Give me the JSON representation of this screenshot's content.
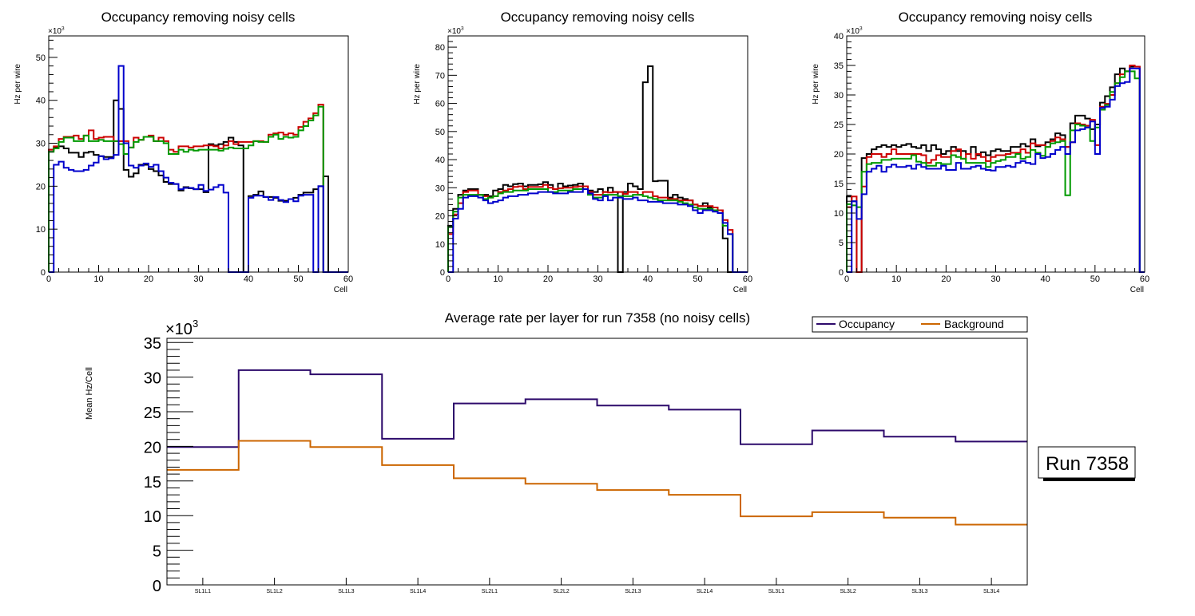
{
  "chart_data": [
    {
      "type": "histogram-step",
      "title": "Occupancy removing noisy cells",
      "xlabel": "Cell",
      "ylabel": "Hz per wire",
      "y_multiplier_label": "×10³",
      "xlim": [
        0,
        60
      ],
      "ylim": [
        0,
        55
      ],
      "x_ticks": [
        0,
        10,
        20,
        30,
        40,
        50,
        60
      ],
      "y_ticks": [
        0,
        10,
        20,
        30,
        40,
        50
      ],
      "bin_width": 1,
      "series": [
        {
          "name": "layer-black",
          "color": "#000000",
          "values": [
            28.5,
            29,
            29.3,
            28.8,
            27.8,
            27.8,
            26.8,
            27.8,
            28,
            27.3,
            27,
            26.8,
            26.8,
            40,
            38,
            23.8,
            22.2,
            23,
            25,
            25,
            24,
            23.5,
            22.5,
            21,
            20.5,
            20.5,
            19,
            19.8,
            19.5,
            19.3,
            19.3,
            18.6,
            29.8,
            29.5,
            29.8,
            30.3,
            31.3,
            30.3,
            29.5,
            0,
            17.7,
            18,
            18.8,
            17.5,
            17.5,
            17.3,
            16.6,
            16.6,
            17,
            17.3,
            18,
            18.5,
            18.5,
            19.3,
            20,
            22.3,
            0,
            0,
            0,
            0
          ]
        },
        {
          "name": "layer-red",
          "color": "#cc0000",
          "values": [
            28.5,
            29.3,
            31,
            31.5,
            31.5,
            31.8,
            31,
            31.8,
            33,
            31,
            31.3,
            31.5,
            31.5,
            30.5,
            30.5,
            30.5,
            29,
            31.3,
            30.8,
            31.5,
            31.8,
            30.5,
            31.3,
            30.5,
            28.5,
            28,
            29.3,
            29.3,
            29,
            29.3,
            29.3,
            29.5,
            29.5,
            29.3,
            28.8,
            29.5,
            30.5,
            29.8,
            30.3,
            30.3,
            30.3,
            30.5,
            30.5,
            30.3,
            32,
            32.3,
            32.5,
            32,
            32.3,
            32,
            33.8,
            35,
            35.8,
            37,
            39,
            0,
            0,
            0,
            0,
            0
          ]
        },
        {
          "name": "layer-green",
          "color": "#009900",
          "values": [
            28,
            28.8,
            30.3,
            31.3,
            31.3,
            30.5,
            30.5,
            31.8,
            30.5,
            30.5,
            30.8,
            30.5,
            30.5,
            30.5,
            29.8,
            27.5,
            29,
            30.3,
            30.8,
            31.5,
            31.5,
            30.5,
            30.5,
            30,
            27.5,
            27.5,
            28.5,
            28,
            28.5,
            28.3,
            28.5,
            28.5,
            28.5,
            28.5,
            28.3,
            28.7,
            29,
            28.8,
            28.8,
            28.8,
            29.5,
            30.5,
            30.3,
            30.3,
            31.5,
            32,
            31,
            31.5,
            31.3,
            31.5,
            33,
            34,
            35.3,
            36.5,
            38.5,
            0,
            0,
            0,
            0,
            0
          ]
        },
        {
          "name": "layer-blue",
          "color": "#0000cc",
          "values": [
            0,
            25,
            25.7,
            24.3,
            23.8,
            23.5,
            23.5,
            23.8,
            24.8,
            25.5,
            27,
            26.3,
            26.5,
            27.3,
            48,
            30,
            24.8,
            24.3,
            24.8,
            25.3,
            24.5,
            25,
            23.5,
            22,
            20.8,
            20.5,
            19.3,
            19.6,
            19.6,
            19.3,
            20.3,
            18.9,
            19.2,
            19.8,
            20.3,
            18.5,
            0,
            0,
            0,
            0,
            17.3,
            17.8,
            17.8,
            17.5,
            16.8,
            17.5,
            16.8,
            16.3,
            17,
            16.5,
            17.8,
            18,
            18,
            0,
            20,
            0,
            0,
            0,
            0,
            0
          ]
        }
      ]
    },
    {
      "type": "histogram-step",
      "title": "Occupancy removing noisy cells",
      "xlabel": "Cell",
      "ylabel": "Hz per wire",
      "y_multiplier_label": "×10³",
      "xlim": [
        0,
        60
      ],
      "ylim": [
        0,
        84
      ],
      "x_ticks": [
        0,
        10,
        20,
        30,
        40,
        50,
        60
      ],
      "y_ticks": [
        0,
        10,
        20,
        30,
        40,
        50,
        60,
        70,
        80
      ],
      "bin_width": 1,
      "series": [
        {
          "name": "layer-black",
          "color": "#000000",
          "values": [
            16.5,
            22.5,
            27.5,
            29,
            29.5,
            29.5,
            27.5,
            27.5,
            27,
            29,
            29.5,
            31,
            30.5,
            31.3,
            31.5,
            30.5,
            31,
            31,
            31.2,
            32,
            31,
            29.5,
            31.5,
            30.5,
            30.8,
            31,
            31.5,
            29.5,
            29,
            28.5,
            29.5,
            28.5,
            30,
            28.5,
            0,
            28.5,
            31.5,
            30.5,
            29.5,
            67.5,
            73.2,
            32.3,
            32.5,
            32.5,
            26.5,
            27.5,
            26.5,
            26,
            25.5,
            24,
            23.5,
            24.5,
            23,
            23,
            22,
            12,
            0,
            0,
            0,
            0
          ]
        },
        {
          "name": "layer-red",
          "color": "#cc0000",
          "values": [
            13.5,
            20.5,
            24.5,
            28.5,
            29,
            29,
            27.5,
            27,
            26.5,
            27,
            28.5,
            29,
            29.5,
            30.3,
            30.5,
            29.5,
            30.3,
            30.3,
            30.3,
            31,
            30,
            29.5,
            29.8,
            30,
            30,
            30.3,
            30.5,
            30.5,
            28.5,
            27.5,
            27.5,
            28.5,
            28.3,
            28.5,
            28.5,
            27.8,
            28.5,
            28.5,
            27.5,
            28.5,
            28.5,
            27,
            26.5,
            26.5,
            26,
            26,
            25.5,
            25.5,
            25.5,
            24,
            23.5,
            23.5,
            23.5,
            23,
            22,
            18.5,
            15,
            0,
            0,
            0
          ]
        },
        {
          "name": "layer-green",
          "color": "#009900",
          "values": [
            16,
            21.5,
            26.5,
            27.5,
            27.5,
            27.5,
            27.5,
            26,
            26.5,
            27,
            28,
            28.5,
            28.5,
            29,
            29,
            29,
            29.5,
            29.5,
            29.5,
            29.5,
            28.5,
            28.5,
            29,
            29,
            29,
            29.5,
            29.5,
            29.5,
            27.5,
            26.5,
            26.5,
            27.5,
            27.5,
            27.5,
            27,
            27,
            27,
            27.5,
            27.5,
            27,
            26.5,
            26,
            25.5,
            25.5,
            25.5,
            25.5,
            25,
            24.5,
            24,
            23,
            22.5,
            22.5,
            22.5,
            22,
            21,
            16.5,
            13.5,
            0,
            0,
            0
          ]
        },
        {
          "name": "layer-blue",
          "color": "#0000cc",
          "values": [
            0,
            19,
            22.5,
            26.5,
            27,
            27,
            26.5,
            25.5,
            24.5,
            25,
            25.5,
            26.5,
            27,
            27,
            27.5,
            27.5,
            28,
            28,
            28.5,
            28.5,
            28.5,
            28,
            28,
            28,
            28.5,
            28.5,
            28.5,
            29.5,
            28,
            26,
            25.5,
            27,
            25.5,
            26.5,
            26.5,
            26,
            26,
            26.5,
            25.5,
            25.5,
            25,
            25,
            25,
            24.5,
            24.5,
            24.5,
            24,
            24,
            23.5,
            22,
            21,
            22,
            22,
            21.5,
            21,
            17.5,
            13.5,
            0,
            0,
            0
          ]
        }
      ]
    },
    {
      "type": "histogram-step",
      "title": "Occupancy removing noisy cells",
      "xlabel": "Cell",
      "ylabel": "Hz per wire",
      "y_multiplier_label": "×10³",
      "xlim": [
        0,
        60
      ],
      "ylim": [
        0,
        40
      ],
      "x_ticks": [
        0,
        10,
        20,
        30,
        40,
        50,
        60
      ],
      "y_ticks": [
        0,
        5,
        10,
        15,
        20,
        25,
        30,
        35,
        40
      ],
      "bin_width": 1,
      "series": [
        {
          "name": "layer-black",
          "color": "#000000",
          "values": [
            12.8,
            12,
            0,
            19.3,
            20,
            20.8,
            21.2,
            21.5,
            21.2,
            21.5,
            21.2,
            21.5,
            21.7,
            21.2,
            21,
            21.5,
            20.5,
            21.5,
            20.8,
            20,
            20.5,
            21.2,
            20.5,
            20.5,
            20,
            21.2,
            19.8,
            20.3,
            19.8,
            20.5,
            20.8,
            20.5,
            20.5,
            21.2,
            21.2,
            21.7,
            21.3,
            22.5,
            21.3,
            21.5,
            22,
            22.5,
            23.5,
            23.2,
            21.2,
            25.2,
            26.5,
            26.5,
            26,
            24.2,
            25,
            28.7,
            29.8,
            31.3,
            33.5,
            34.5,
            34,
            34.8,
            34.8,
            0
          ]
        },
        {
          "name": "layer-red",
          "color": "#cc0000",
          "values": [
            11,
            12.8,
            0,
            14.5,
            19.5,
            20,
            20,
            19.5,
            20,
            20.8,
            20,
            20,
            20,
            20,
            20,
            19.8,
            18.5,
            19,
            19.8,
            19.5,
            19.5,
            20.5,
            20.8,
            19.2,
            20,
            19.2,
            20,
            19.5,
            18.8,
            19.5,
            19.8,
            19.8,
            20,
            20.2,
            20.2,
            20.8,
            20.2,
            21.8,
            21.5,
            21.5,
            21.2,
            22.2,
            22.8,
            22.5,
            21.2,
            22,
            25.2,
            25,
            24.8,
            25.8,
            21.5,
            28,
            28.5,
            30,
            32,
            33.5,
            34,
            35,
            34.8,
            0
          ]
        },
        {
          "name": "layer-green",
          "color": "#009900",
          "values": [
            11.5,
            11.3,
            11,
            17,
            18.3,
            18.5,
            18.5,
            19,
            19,
            19.2,
            19.2,
            19.2,
            19.2,
            19.8,
            18.7,
            18.5,
            18,
            18,
            18.5,
            18.3,
            18.3,
            19.8,
            19.5,
            19.2,
            18.5,
            18.5,
            18.5,
            18.5,
            17.8,
            18.5,
            18.8,
            19,
            19.5,
            19.5,
            20,
            19.2,
            19.5,
            20.7,
            20.2,
            19.7,
            21.2,
            21.8,
            22,
            22.2,
            13,
            24,
            25,
            24.8,
            24.5,
            22.2,
            24.5,
            27.5,
            28.3,
            30.5,
            32,
            33,
            34,
            34,
            32.8,
            0
          ]
        },
        {
          "name": "layer-blue",
          "color": "#0000cc",
          "values": [
            0,
            12,
            9,
            13.2,
            17,
            17.5,
            18,
            17,
            17.8,
            18.2,
            17.8,
            17.8,
            18,
            17.5,
            18.2,
            17.8,
            17.5,
            17.5,
            17.5,
            18,
            17.3,
            17.3,
            18.5,
            17.5,
            17.5,
            17.8,
            18,
            17.5,
            17.3,
            17.2,
            17.8,
            17.8,
            18,
            17.8,
            18.5,
            18.8,
            18.5,
            18.3,
            20,
            19.3,
            19.5,
            20,
            20.7,
            21.2,
            20,
            22,
            24,
            24.2,
            24.5,
            25.5,
            20,
            27.8,
            28,
            29.2,
            31.5,
            32,
            32.2,
            34.5,
            34.5,
            0
          ]
        }
      ]
    },
    {
      "type": "line-step",
      "title": "Average rate per layer for run 7358 (no noisy cells)",
      "xlabel": "",
      "ylabel": "Mean Hz/Cell",
      "y_multiplier_label": "×10³",
      "ylim": [
        0,
        35.6
      ],
      "y_ticks": [
        0,
        5,
        10,
        15,
        20,
        25,
        30,
        35
      ],
      "categories": [
        "SL1L1",
        "SL1L2",
        "SL1L3",
        "SL1L4",
        "SL2L1",
        "SL2L2",
        "SL2L3",
        "SL2L4",
        "SL3L1",
        "SL3L2",
        "SL3L3",
        "SL3L4"
      ],
      "legend_position": "top-right",
      "series": [
        {
          "name": "Occupancy",
          "color": "#2d0a6b",
          "values": [
            19.9,
            31.0,
            30.4,
            21.1,
            26.2,
            26.8,
            25.9,
            25.3,
            20.3,
            22.3,
            21.4,
            20.7
          ]
        },
        {
          "name": "Background",
          "color": "#cc6600",
          "values": [
            16.6,
            20.8,
            19.9,
            17.3,
            15.4,
            14.6,
            13.7,
            13.0,
            9.9,
            10.5,
            9.7,
            8.7
          ]
        }
      ],
      "annotation": "Run 7358"
    }
  ]
}
